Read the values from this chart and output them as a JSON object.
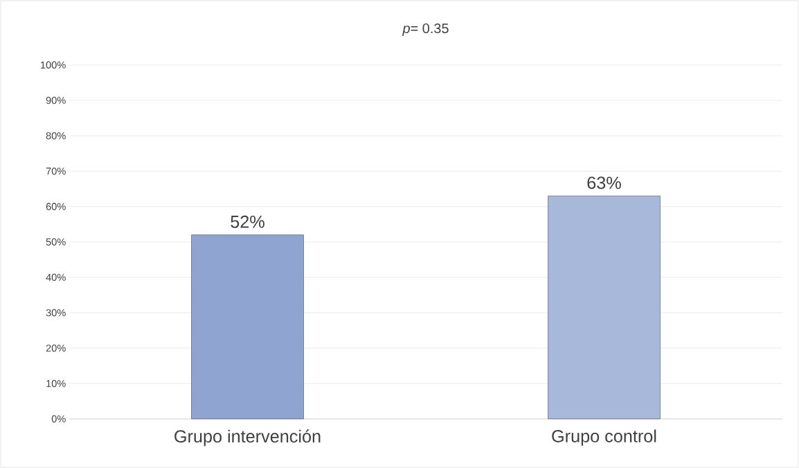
{
  "chart_data": {
    "type": "bar",
    "title": "*p*= 0.35",
    "categories": [
      "Grupo intervención",
      "Grupo  control"
    ],
    "values": [
      52,
      63
    ],
    "colors": [
      "#8fa4d0",
      "#a8b8da"
    ],
    "value_labels": [
      "52%",
      "63%"
    ],
    "ylim": [
      0,
      100
    ],
    "yticks": [
      {
        "value": 0,
        "label": "0%"
      },
      {
        "value": 10,
        "label": "10%"
      },
      {
        "value": 20,
        "label": "20%"
      },
      {
        "value": 30,
        "label": "30%"
      },
      {
        "value": 40,
        "label": "40%"
      },
      {
        "value": 50,
        "label": "50%"
      },
      {
        "value": 60,
        "label": "60%"
      },
      {
        "value": 70,
        "label": "70%"
      },
      {
        "value": 80,
        "label": "80%"
      },
      {
        "value": 90,
        "label": "90%"
      },
      {
        "value": 100,
        "label": "100%"
      }
    ],
    "grid": "y"
  }
}
